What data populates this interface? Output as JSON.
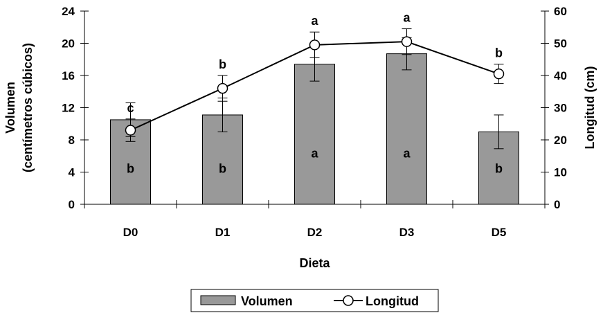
{
  "chart_data": {
    "type": "bar",
    "xlabel": "Dieta",
    "categories": [
      "D0",
      "D1",
      "D2",
      "D3",
      "D5"
    ],
    "y_left": {
      "label_line1": "Volumen",
      "label_line2": "(centímetros cúbicos)",
      "ylim": [
        0,
        24
      ],
      "ticks": [
        "0",
        "4",
        "8",
        "12",
        "16",
        "20",
        "24"
      ]
    },
    "y_right": {
      "label": "Longitud (cm)",
      "ylim": [
        0,
        60
      ],
      "ticks": [
        "0",
        "10",
        "20",
        "30",
        "40",
        "50",
        "60"
      ]
    },
    "series": [
      {
        "name": "Volumen",
        "kind": "bar",
        "axis": "left",
        "color": "#999999",
        "values": [
          10.5,
          11.1,
          17.4,
          18.7,
          9.0
        ],
        "error": [
          2.1,
          2.1,
          2.1,
          2.0,
          2.1
        ],
        "significance": [
          "b",
          "b",
          "a",
          "a",
          "b"
        ]
      },
      {
        "name": "Longitud",
        "kind": "line",
        "axis": "right",
        "color": "#000000",
        "values": [
          23,
          36,
          49.5,
          50.5,
          40.5
        ],
        "error": [
          3.5,
          4.0,
          4.0,
          4.0,
          3.0
        ],
        "significance": [
          "c",
          "b",
          "a",
          "a",
          "b"
        ]
      }
    ],
    "legend": {
      "position": "bottom",
      "entries": [
        "Volumen",
        "Longitud"
      ]
    },
    "grid": false
  }
}
